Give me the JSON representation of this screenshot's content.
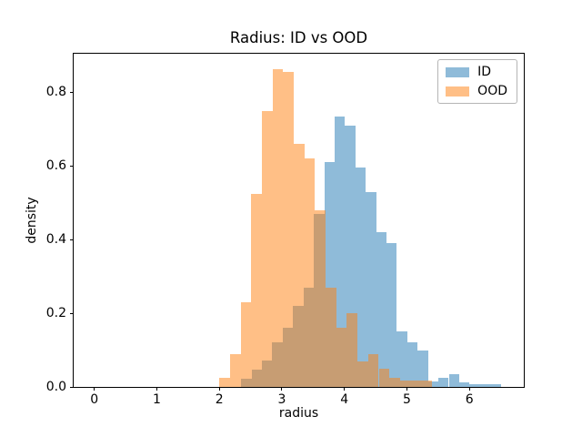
{
  "figure": {
    "title": "Radius: ID vs OOD",
    "xlabel": "radius",
    "ylabel": "density",
    "background": "#ffffff",
    "spine_color": "#000000"
  },
  "chart_data": {
    "type": "histogram",
    "title": "Radius: ID vs OOD",
    "xlabel": "radius",
    "ylabel": "density",
    "xlim": [
      -0.33,
      6.87
    ],
    "ylim": [
      0,
      0.905
    ],
    "grid": false,
    "xticks": {
      "values": [
        0,
        1,
        2,
        3,
        4,
        5,
        6
      ],
      "labels": [
        "0",
        "1",
        "2",
        "3",
        "4",
        "5",
        "6"
      ]
    },
    "yticks": {
      "values": [
        0.0,
        0.2,
        0.4,
        0.6,
        0.8
      ],
      "labels": [
        "0.0",
        "0.2",
        "0.4",
        "0.6",
        "0.8"
      ]
    },
    "legend": {
      "position": "upper right",
      "entries": [
        {
          "label": "ID",
          "color": "#1f77b4",
          "alpha": 0.5
        },
        {
          "label": "OOD",
          "color": "#ff7f0e",
          "alpha": 0.5
        }
      ]
    },
    "series": [
      {
        "name": "ID",
        "color": "#1f77b4",
        "alpha": 0.5,
        "z": 1,
        "bin_start": 2.35,
        "bin_width": 0.166,
        "densities": [
          0.023,
          0.046,
          0.071,
          0.122,
          0.16,
          0.22,
          0.27,
          0.47,
          0.61,
          0.735,
          0.71,
          0.595,
          0.53,
          0.42,
          0.39,
          0.15,
          0.12,
          0.1,
          0.014,
          0.024,
          0.034,
          0.012,
          0.008,
          0.008,
          0.008
        ]
      },
      {
        "name": "OOD",
        "color": "#ff7f0e",
        "alpha": 0.5,
        "z": 2,
        "bin_start": 2.0,
        "bin_width": 0.17,
        "densities": [
          0.026,
          0.088,
          0.23,
          0.525,
          0.75,
          0.862,
          0.855,
          0.66,
          0.62,
          0.48,
          0.27,
          0.16,
          0.2,
          0.07,
          0.09,
          0.05,
          0.025,
          0.018,
          0.018,
          0.018
        ]
      }
    ]
  }
}
